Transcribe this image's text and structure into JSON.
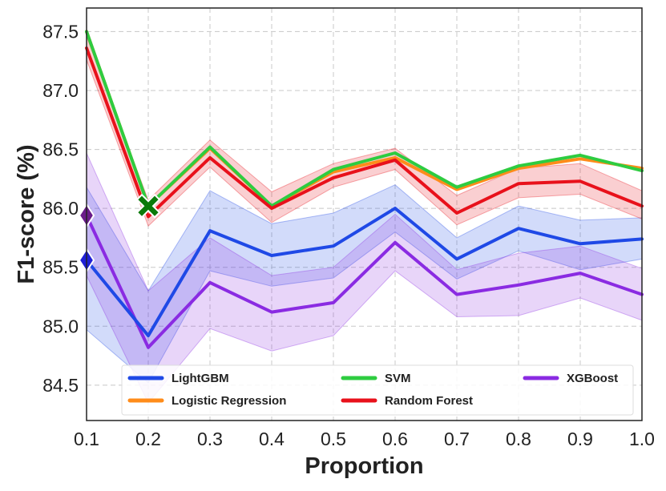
{
  "chart_data": {
    "type": "line",
    "title": "",
    "xlabel": "Proportion",
    "ylabel": "F1-score (%)",
    "xlim": [
      0.1,
      1.0
    ],
    "ylim": [
      84.2,
      87.7
    ],
    "grid": true,
    "legend_position": "bottom",
    "x": [
      0.1,
      0.2,
      0.3,
      0.4,
      0.5,
      0.6,
      0.7,
      0.8,
      0.9,
      1.0
    ],
    "x_tick_labels": [
      "0.1",
      "0.2",
      "0.3",
      "0.4",
      "0.5",
      "0.6",
      "0.7",
      "0.8",
      "0.9",
      "1.0"
    ],
    "y_ticks": [
      84.5,
      85.0,
      85.5,
      86.0,
      86.5,
      87.0,
      87.5
    ],
    "y_tick_labels": [
      "84.5",
      "85.0",
      "85.5",
      "86.0",
      "86.5",
      "87.0",
      "87.5"
    ],
    "series": [
      {
        "name": "LightGBM",
        "color": "#1f49e6",
        "values": [
          85.56,
          84.92,
          85.81,
          85.6,
          85.68,
          86.0,
          85.57,
          85.83,
          85.7,
          85.74
        ],
        "lower": [
          84.97,
          84.52,
          85.47,
          85.34,
          85.41,
          85.8,
          85.4,
          85.64,
          85.48,
          85.57
        ],
        "upper": [
          86.18,
          85.3,
          86.15,
          85.87,
          85.96,
          86.2,
          85.75,
          86.02,
          85.9,
          85.92
        ],
        "marker": "diamond",
        "marker_index": 0
      },
      {
        "name": "Logistic Regression",
        "color": "#ff8c1a",
        "values": [
          87.5,
          86.02,
          86.51,
          86.02,
          86.31,
          86.43,
          86.16,
          86.34,
          86.42,
          86.34
        ],
        "marker": "none"
      },
      {
        "name": "SVM",
        "color": "#2ecc40",
        "values": [
          87.5,
          86.02,
          86.52,
          86.02,
          86.33,
          86.47,
          86.18,
          86.36,
          86.45,
          86.32
        ],
        "marker": "x",
        "marker_index": 1
      },
      {
        "name": "Random Forest",
        "color": "#e8111b",
        "values": [
          87.36,
          85.93,
          86.43,
          86.0,
          86.26,
          86.41,
          85.96,
          86.21,
          86.23,
          86.02
        ],
        "lower": [
          87.26,
          85.85,
          86.35,
          85.88,
          86.18,
          86.33,
          85.86,
          86.09,
          86.12,
          85.91
        ],
        "upper": [
          87.46,
          86.07,
          86.58,
          86.14,
          86.38,
          86.51,
          86.11,
          86.34,
          86.38,
          86.15
        ],
        "marker": "none"
      },
      {
        "name": "XGBoost",
        "color": "#8a2be2",
        "values": [
          85.94,
          84.82,
          85.37,
          85.12,
          85.2,
          85.71,
          85.27,
          85.35,
          85.45,
          85.27
        ],
        "lower": [
          85.43,
          84.35,
          84.98,
          84.79,
          84.92,
          85.47,
          85.08,
          85.09,
          85.24,
          85.05
        ],
        "upper": [
          86.47,
          85.3,
          85.75,
          85.43,
          85.5,
          85.95,
          85.48,
          85.62,
          85.68,
          85.49
        ],
        "marker": "diamond",
        "marker_index": 0
      }
    ],
    "legend_order": [
      "LightGBM",
      "SVM",
      "XGBoost",
      "Logistic Regression",
      "Random Forest"
    ]
  },
  "colors": {
    "background": "#ffffff",
    "axis": "#222222",
    "grid": "#c8c8c8",
    "x_marker": "#0a7a0a",
    "lightgbm_marker": "#1f1fd6",
    "xgboost_marker": "#6a1b8a"
  }
}
